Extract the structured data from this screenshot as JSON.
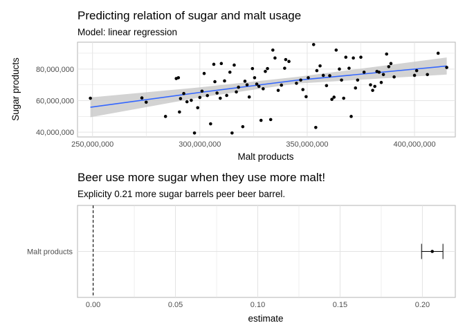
{
  "chart_data": [
    {
      "type": "scatter",
      "title": "Predicting relation of sugar and malt usage",
      "subtitle": "Model: linear regression",
      "xlabel": "Malt products",
      "ylabel": "Sugar products",
      "xlim": [
        243000000,
        419000000
      ],
      "ylim": [
        37000000,
        97000000
      ],
      "x_ticks": [
        250000000,
        300000000,
        350000000,
        400000000
      ],
      "x_tick_labels": [
        "250,000,000",
        "300,000,000",
        "350,000,000",
        "400,000,000"
      ],
      "y_ticks": [
        40000000,
        60000000,
        80000000
      ],
      "y_tick_labels": [
        "40,000,000",
        "60,000,000",
        "80,000,000"
      ],
      "grid": true,
      "fit_line": {
        "method": "linear regression",
        "color": "#3366ff",
        "band_color": "#c8c8c8",
        "points": [
          {
            "x": 249000000,
            "y": 55800000,
            "lo": 49500000,
            "hi": 62000000
          },
          {
            "x": 300000000,
            "y": 65200000,
            "lo": 62000000,
            "hi": 68400000
          },
          {
            "x": 345000000,
            "y": 72900000,
            "lo": 70800000,
            "hi": 75000000
          },
          {
            "x": 415000000,
            "y": 81900000,
            "lo": 76500000,
            "hi": 87300000
          }
        ]
      },
      "points": [
        {
          "x": 249000000,
          "y": 61500000
        },
        {
          "x": 273000000,
          "y": 61700000
        },
        {
          "x": 275000000,
          "y": 59000000
        },
        {
          "x": 284000000,
          "y": 50000000
        },
        {
          "x": 289000000,
          "y": 74000000
        },
        {
          "x": 290000000,
          "y": 74500000
        },
        {
          "x": 290500000,
          "y": 52800000
        },
        {
          "x": 291000000,
          "y": 61300000
        },
        {
          "x": 292500000,
          "y": 64500000
        },
        {
          "x": 294000000,
          "y": 59300000
        },
        {
          "x": 296000000,
          "y": 60200000
        },
        {
          "x": 297500000,
          "y": 39500000
        },
        {
          "x": 299000000,
          "y": 55500000
        },
        {
          "x": 300000000,
          "y": 62000000
        },
        {
          "x": 301000000,
          "y": 66000000
        },
        {
          "x": 302000000,
          "y": 77200000
        },
        {
          "x": 303500000,
          "y": 63200000
        },
        {
          "x": 305000000,
          "y": 45300000
        },
        {
          "x": 306500000,
          "y": 83000000
        },
        {
          "x": 307000000,
          "y": 72000000
        },
        {
          "x": 308000000,
          "y": 64800000
        },
        {
          "x": 309500000,
          "y": 61500000
        },
        {
          "x": 310000000,
          "y": 83500000
        },
        {
          "x": 311500000,
          "y": 72500000
        },
        {
          "x": 312500000,
          "y": 63300000
        },
        {
          "x": 314000000,
          "y": 78000000
        },
        {
          "x": 315000000,
          "y": 39500000
        },
        {
          "x": 316000000,
          "y": 82500000
        },
        {
          "x": 317000000,
          "y": 65500000
        },
        {
          "x": 318000000,
          "y": 68500000
        },
        {
          "x": 320000000,
          "y": 43500000
        },
        {
          "x": 321000000,
          "y": 72300000
        },
        {
          "x": 322000000,
          "y": 70000000
        },
        {
          "x": 323000000,
          "y": 62300000
        },
        {
          "x": 324500000,
          "y": 80300000
        },
        {
          "x": 325500000,
          "y": 74500000
        },
        {
          "x": 326500000,
          "y": 70500000
        },
        {
          "x": 327500000,
          "y": 69000000
        },
        {
          "x": 328500000,
          "y": 47500000
        },
        {
          "x": 329500000,
          "y": 67500000
        },
        {
          "x": 330500000,
          "y": 78500000
        },
        {
          "x": 331500000,
          "y": 80300000
        },
        {
          "x": 333000000,
          "y": 48000000
        },
        {
          "x": 334000000,
          "y": 92000000
        },
        {
          "x": 335000000,
          "y": 87000000
        },
        {
          "x": 336500000,
          "y": 66500000
        },
        {
          "x": 338000000,
          "y": 69800000
        },
        {
          "x": 339500000,
          "y": 80500000
        },
        {
          "x": 340000000,
          "y": 86000000
        },
        {
          "x": 341500000,
          "y": 84800000
        },
        {
          "x": 345000000,
          "y": 71000000
        },
        {
          "x": 347000000,
          "y": 73000000
        },
        {
          "x": 348000000,
          "y": 67000000
        },
        {
          "x": 349500000,
          "y": 62500000
        },
        {
          "x": 350500000,
          "y": 74500000
        },
        {
          "x": 353000000,
          "y": 95500000
        },
        {
          "x": 354000000,
          "y": 43000000
        },
        {
          "x": 354500000,
          "y": 79000000
        },
        {
          "x": 356000000,
          "y": 82000000
        },
        {
          "x": 357500000,
          "y": 76000000
        },
        {
          "x": 359000000,
          "y": 69500000
        },
        {
          "x": 360500000,
          "y": 75800000
        },
        {
          "x": 361500000,
          "y": 60800000
        },
        {
          "x": 362500000,
          "y": 62200000
        },
        {
          "x": 363500000,
          "y": 92000000
        },
        {
          "x": 365000000,
          "y": 80000000
        },
        {
          "x": 366000000,
          "y": 73000000
        },
        {
          "x": 367000000,
          "y": 61500000
        },
        {
          "x": 368000000,
          "y": 87500000
        },
        {
          "x": 369500000,
          "y": 80500000
        },
        {
          "x": 370500000,
          "y": 50000000
        },
        {
          "x": 371500000,
          "y": 87000000
        },
        {
          "x": 372500000,
          "y": 68000000
        },
        {
          "x": 373500000,
          "y": 73000000
        },
        {
          "x": 375000000,
          "y": 87500000
        },
        {
          "x": 376500000,
          "y": 78000000
        },
        {
          "x": 379500000,
          "y": 70000000
        },
        {
          "x": 380500000,
          "y": 66500000
        },
        {
          "x": 381500000,
          "y": 69000000
        },
        {
          "x": 382500000,
          "y": 78500000
        },
        {
          "x": 383500000,
          "y": 78000000
        },
        {
          "x": 384500000,
          "y": 71500000
        },
        {
          "x": 385500000,
          "y": 76500000
        },
        {
          "x": 387000000,
          "y": 89500000
        },
        {
          "x": 388000000,
          "y": 81500000
        },
        {
          "x": 389000000,
          "y": 83500000
        },
        {
          "x": 390500000,
          "y": 75000000
        },
        {
          "x": 400000000,
          "y": 76000000
        },
        {
          "x": 401000000,
          "y": 79000000
        },
        {
          "x": 406000000,
          "y": 76500000
        },
        {
          "x": 411000000,
          "y": 90000000
        },
        {
          "x": 415000000,
          "y": 81000000
        }
      ]
    },
    {
      "type": "coefficient",
      "title": "Beer use more sugar when they use more malt!",
      "subtitle": "Explicity 0.21 more sugar barrels peer beer barrel.",
      "xlabel": "estimate",
      "xlim": [
        -0.0095,
        0.22
      ],
      "x_ticks": [
        0.0,
        0.05,
        0.1,
        0.15,
        0.2
      ],
      "x_tick_labels": [
        "0.00",
        "0.05",
        "0.10",
        "0.15",
        "0.20"
      ],
      "reference_line": 0,
      "grid": true,
      "terms": [
        {
          "term": "Malt products",
          "estimate": 0.206,
          "conf_low": 0.1995,
          "conf_high": 0.2125
        }
      ]
    }
  ]
}
